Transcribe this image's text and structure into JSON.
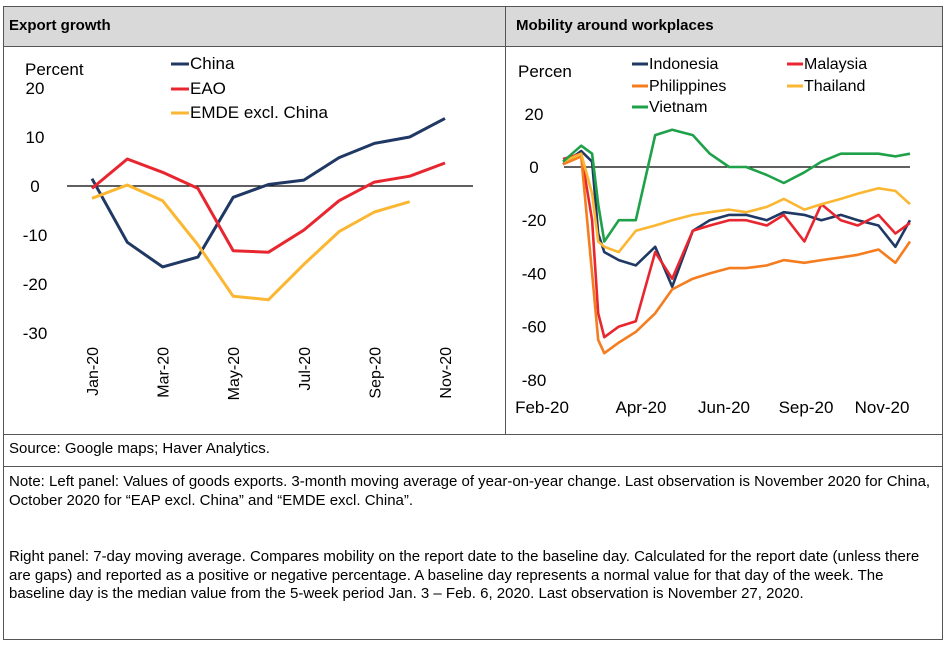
{
  "left_panel": {
    "title": "Export growth"
  },
  "right_panel": {
    "title": "Mobility around workplaces"
  },
  "source": "Source: Google maps; Haver Analytics.",
  "note_left": "Note: Left panel: Values of goods exports. 3-month moving average of year-on-year change. Last observation is November 2020 for China, October 2020 for “EAP excl. China” and “EMDE excl. China”.",
  "note_right": "Right panel: 7-day moving average. Compares mobility on the report date to the baseline day. Calculated for the report date (unless there are gaps) and reported as a positive or negative percentage. A baseline day represents a normal value for that day of the week. The baseline day is the median value from the 5-week period Jan. 3 – Feb. 6, 2020. Last observation is November 27, 2020.",
  "chart_data": [
    {
      "type": "line",
      "title": "Export growth",
      "ylabel": "Percent",
      "ylim": [
        -30,
        20
      ],
      "yticks": [
        "20",
        "10",
        "0",
        "-10",
        "-20",
        "-30"
      ],
      "x": [
        "Jan-20",
        "Feb-20",
        "Mar-20",
        "Apr-20",
        "May-20",
        "Jun-20",
        "Jul-20",
        "Aug-20",
        "Sep-20",
        "Oct-20",
        "Nov-20"
      ],
      "xticks": [
        "Jan-20",
        "Mar-20",
        "May-20",
        "Jul-20",
        "Sep-20",
        "Nov-20"
      ],
      "series": [
        {
          "name": "China",
          "color": "#1f3864",
          "values": [
            1.5,
            -11.5,
            -16.5,
            -14.5,
            -2.3,
            0.3,
            1.2,
            5.8,
            8.7,
            10.0,
            13.8
          ]
        },
        {
          "name": "EAO",
          "color": "#e8262f",
          "values": [
            -0.5,
            5.5,
            2.8,
            -0.5,
            -13.2,
            -13.5,
            -9.0,
            -3.0,
            0.8,
            2.0,
            4.7
          ]
        },
        {
          "name": "EMDE excl. China",
          "color": "#fbb632",
          "values": [
            -2.5,
            0.2,
            -3.0,
            -12.0,
            -22.5,
            -23.2,
            -16.0,
            -9.3,
            -5.3,
            -3.2,
            null
          ]
        }
      ]
    },
    {
      "type": "line",
      "title": "Mobility around workplaces",
      "ylabel": "Percen",
      "ylim": [
        -80,
        20
      ],
      "yticks": [
        "20",
        "0",
        "-20",
        "-40",
        "-60",
        "-80"
      ],
      "xticks": [
        "Feb-20",
        "Apr-20",
        "Jun-20",
        "Sep-20",
        "Nov-20"
      ],
      "x": [
        "Feb-15",
        "Mar-01",
        "Mar-10",
        "Mar-15",
        "Mar-20",
        "Apr-01",
        "Apr-15",
        "May-01",
        "May-15",
        "Jun-01",
        "Jun-15",
        "Jul-01",
        "Jul-15",
        "Aug-01",
        "Aug-15",
        "Sep-01",
        "Sep-15",
        "Oct-01",
        "Oct-15",
        "Nov-01",
        "Nov-15",
        "Nov-27"
      ],
      "series": [
        {
          "name": "Indonesia",
          "color": "#1f3864",
          "values": [
            1,
            6,
            2,
            -25,
            -32,
            -35,
            -37,
            -30,
            -45,
            -24,
            -20,
            -18,
            -18,
            -20,
            -17,
            -18,
            -20,
            -18,
            -20,
            -22,
            -30,
            -20
          ]
        },
        {
          "name": "Malaysia",
          "color": "#e8262f",
          "values": [
            3,
            5,
            -20,
            -55,
            -64,
            -60,
            -58,
            -32,
            -42,
            -24,
            -22,
            -20,
            -20,
            -22,
            -18,
            -28,
            -14,
            -20,
            -22,
            -18,
            -25,
            -21
          ]
        },
        {
          "name": "Philippines",
          "color": "#f47d20",
          "values": [
            1,
            4,
            -40,
            -65,
            -70,
            -66,
            -62,
            -55,
            -46,
            -42,
            -40,
            -38,
            -38,
            -37,
            -35,
            -36,
            -35,
            -34,
            -33,
            -31,
            -36,
            -28
          ]
        },
        {
          "name": "Thailand",
          "color": "#fbb632",
          "values": [
            2,
            5,
            -10,
            -28,
            -30,
            -32,
            -24,
            -22,
            -20,
            -18,
            -17,
            -16,
            -17,
            -15,
            -12,
            -16,
            -14,
            -12,
            -10,
            -8,
            -9,
            -14
          ]
        },
        {
          "name": "Vietnam",
          "color": "#1fa14a",
          "values": [
            2,
            8,
            5,
            -14,
            -28,
            -20,
            -20,
            12,
            14,
            12,
            5,
            0,
            0,
            -3,
            -6,
            -2,
            2,
            5,
            5,
            5,
            4,
            5
          ]
        }
      ]
    }
  ]
}
